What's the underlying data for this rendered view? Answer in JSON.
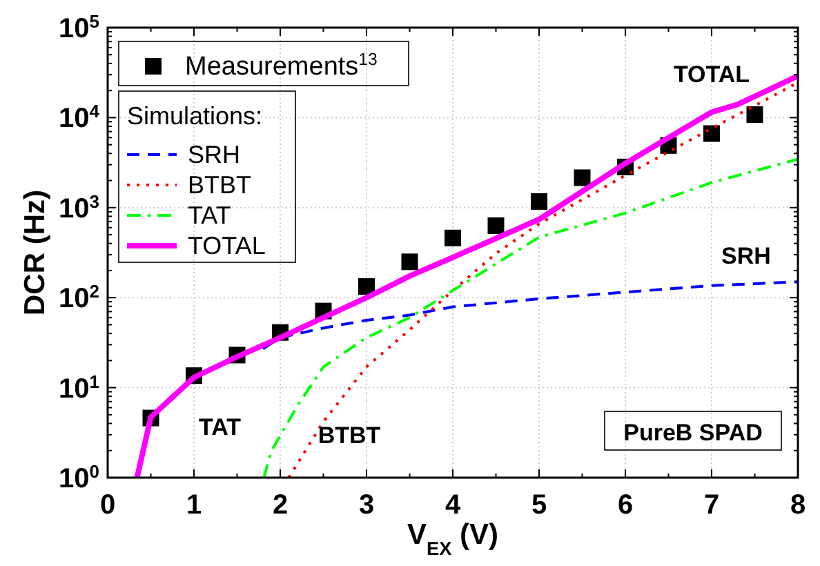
{
  "chart_data": {
    "type": "line",
    "xlabel": "V$_{EX}$ (V)",
    "ylabel": "DCR (Hz)",
    "legend_title": "Simulations:",
    "log": "y",
    "grid": true,
    "legend": "top left",
    "xlim": [
      0,
      8
    ],
    "xticks": [
      0,
      1,
      2,
      3,
      4,
      5,
      6,
      7,
      8
    ],
    "ylim": [
      1,
      100000
    ],
    "yticks": [
      {
        "value": 1,
        "label": "10$^{0}$"
      },
      {
        "value": 10,
        "label": "10$^{1}$"
      },
      {
        "value": 100,
        "label": "10$^{2}$"
      },
      {
        "value": 1000,
        "label": "10$^{3}$"
      },
      {
        "value": 10000,
        "label": "10$^{4}$"
      },
      {
        "value": 100000,
        "label": "10$^{5}$"
      }
    ],
    "series": [
      {
        "name": "Measurements$^{13}$",
        "type": "scatter",
        "marker": "square",
        "color": "#000000",
        "x": [
          0.5,
          1,
          1.5,
          2,
          2.5,
          3,
          3.5,
          4,
          4.5,
          5,
          5.5,
          6,
          6.5,
          7,
          7.5
        ],
        "values": [
          4.6,
          13.6,
          23,
          41,
          71,
          133,
          250,
          460,
          630,
          1170,
          2150,
          2830,
          4900,
          6650,
          10800
        ]
      },
      {
        "name": "SRH",
        "line_style": "dashed",
        "color": "#0000ff",
        "x": [
          1.8,
          2,
          2.5,
          3,
          3.5,
          4,
          5,
          6,
          7,
          8
        ],
        "values": [
          27,
          36,
          46,
          56,
          64,
          79,
          97,
          115,
          136,
          150
        ]
      },
      {
        "name": "BTBT",
        "line_style": "dotted",
        "color": "#ff0000",
        "x": [
          2.1,
          2.5,
          3,
          3.5,
          4,
          4.5,
          5,
          6,
          7,
          7.5,
          8
        ],
        "values": [
          1,
          4.2,
          17,
          44,
          120,
          310,
          660,
          2280,
          7600,
          13600,
          24500
        ]
      },
      {
        "name": "TAT",
        "line_style": "dashdot",
        "color": "#00ff00",
        "x": [
          1.81,
          1.9,
          2.2,
          2.5,
          3,
          3.5,
          4,
          5,
          6,
          7,
          8
        ],
        "values": [
          1,
          2,
          6.3,
          17,
          36,
          60,
          120,
          470,
          870,
          1900,
          3450
        ]
      },
      {
        "name": "TOTAL",
        "line_style": "solid",
        "color": "#ff00ff",
        "x": [
          0.34,
          0.5,
          1,
          1.5,
          2,
          2.5,
          3,
          3.5,
          4,
          5,
          6,
          7,
          7.3,
          8
        ],
        "values": [
          1,
          4.7,
          13,
          22,
          36,
          60,
          100,
          174,
          280,
          740,
          3100,
          11500,
          14000,
          29000
        ]
      }
    ],
    "annotations": [
      "TOTAL",
      "SRH",
      "TAT",
      "BTBT",
      "PureB SPAD"
    ]
  }
}
